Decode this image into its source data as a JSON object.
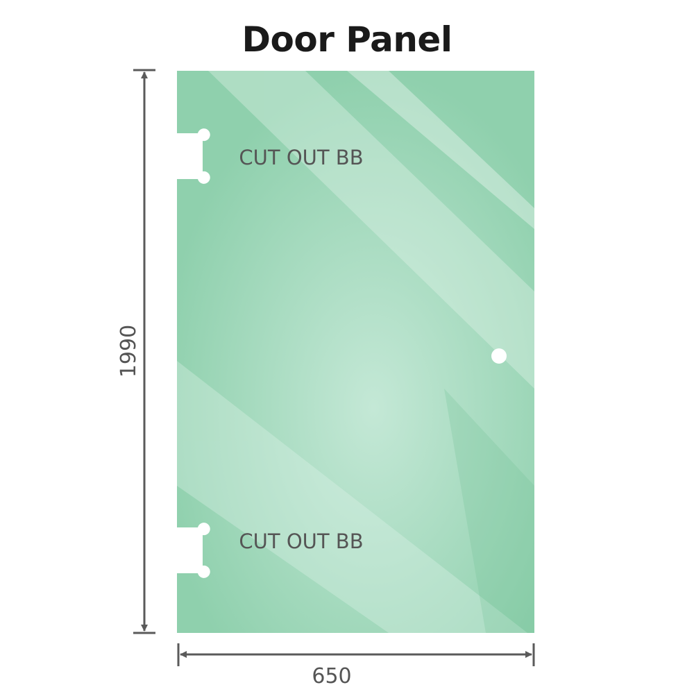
{
  "title": "Door Panel",
  "cutouts": [
    {
      "label": "CUT OUT BB"
    },
    {
      "label": "CUT OUT BB"
    }
  ],
  "dimensions": {
    "height": "1990",
    "width": "650"
  },
  "colors": {
    "glass": "#8fd0ad",
    "glass_light": "#bfe5d2",
    "dimension_line": "#5a5a5a"
  }
}
